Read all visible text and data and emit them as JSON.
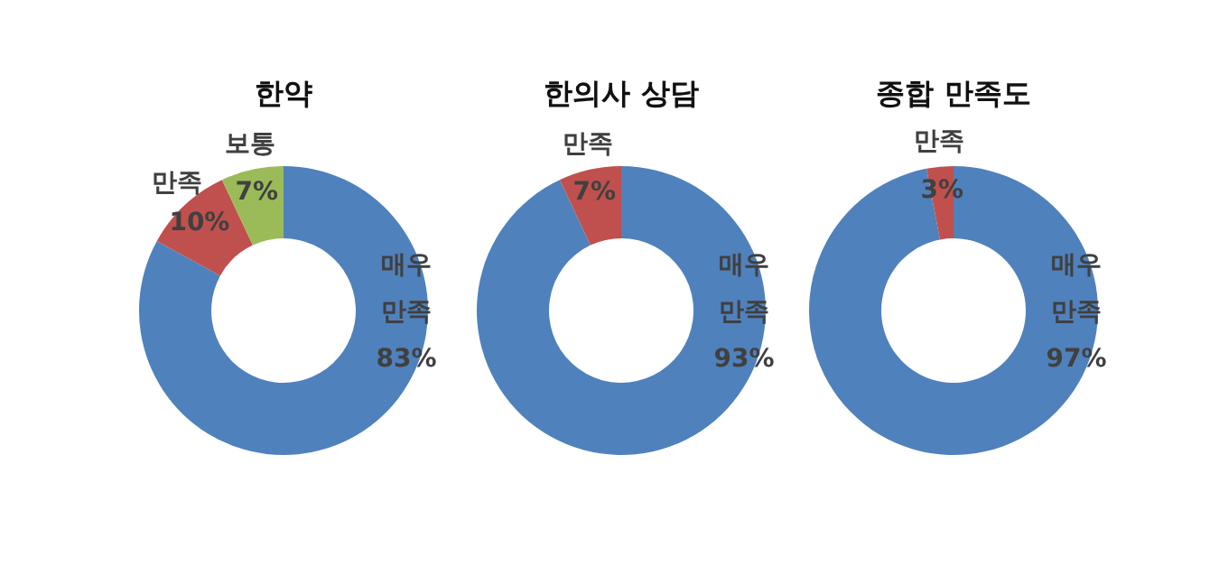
{
  "chart_data": [
    {
      "type": "donut",
      "title": "한약",
      "categories": [
        "매우 만족",
        "만족",
        "보통"
      ],
      "values": [
        83,
        10,
        7
      ],
      "colors": [
        "#4f81bd",
        "#c0504d",
        "#9bbb59"
      ],
      "value_labels": [
        "83%",
        "10%",
        "7%"
      ]
    },
    {
      "type": "donut",
      "title": "한의사 상담",
      "categories": [
        "매우 만족",
        "만족"
      ],
      "values": [
        93,
        7
      ],
      "colors": [
        "#4f81bd",
        "#c0504d"
      ],
      "value_labels": [
        "93%",
        "7%"
      ]
    },
    {
      "type": "donut",
      "title": "종합 만족도",
      "categories": [
        "매우 만족",
        "만족"
      ],
      "values": [
        97,
        3
      ],
      "colors": [
        "#4f81bd",
        "#c0504d"
      ],
      "value_labels": [
        "97%",
        "3%"
      ]
    }
  ]
}
